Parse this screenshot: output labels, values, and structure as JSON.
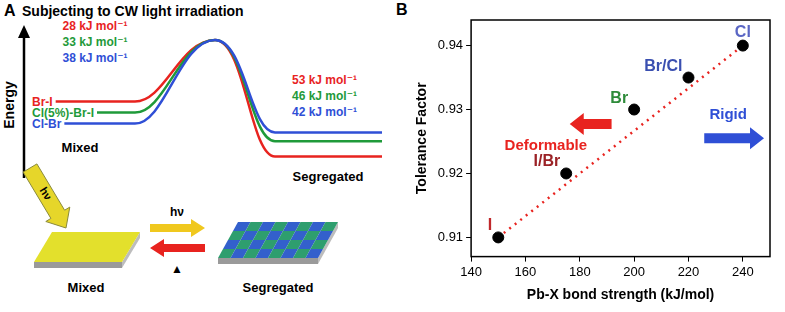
{
  "panel_a": {
    "letter": "A",
    "title": "Subjecting to CW light irradiation",
    "axis_label": "Energy",
    "state_labels": [
      "Mixed",
      "Segregated"
    ],
    "curves": [
      {
        "name": "Br-I",
        "color": "#e8231f",
        "mixed_barrier": {
          "value": 28,
          "label": "28 kJ mol⁻¹"
        },
        "segregated_barrier": {
          "value": 53,
          "label": "53 kJ mol⁻¹"
        }
      },
      {
        "name": "Cl(5%)-Br-I",
        "color": "#1f9a3a",
        "mixed_barrier": {
          "value": 33,
          "label": "33 kJ mol⁻¹"
        },
        "segregated_barrier": {
          "value": 46,
          "label": "46 kJ mol⁻¹"
        }
      },
      {
        "name": "Cl-Br",
        "color": "#2f4fd6",
        "mixed_barrier": {
          "value": 38,
          "label": "38 kJ mol⁻¹"
        },
        "segregated_barrier": {
          "value": 42,
          "label": "42 kJ mol⁻¹"
        }
      }
    ],
    "illustration": {
      "light": "hν",
      "forward": "hν",
      "reverse": "▲",
      "left": "Mixed",
      "right": "Segregated"
    }
  },
  "chart_data": {
    "type": "scatter",
    "panel_label": "B",
    "x_label": "Pb-X bond strength (kJ/mol)",
    "y_label": "Tolerance Factor",
    "xlim": [
      140,
      250
    ],
    "xticks": [
      140,
      160,
      180,
      200,
      220,
      240
    ],
    "ylim": [
      0.907,
      0.944
    ],
    "yticks": [
      0.91,
      0.92,
      0.93,
      0.94
    ],
    "grid": false,
    "series": [
      {
        "x": [
          150,
          175,
          200,
          220,
          240
        ],
        "values": [
          0.91,
          0.92,
          0.93,
          0.935,
          0.94
        ],
        "color": "#000000",
        "marker": "circle",
        "point_labels": [
          "I",
          "I/Br",
          "Br",
          "Br/Cl",
          "Cl"
        ],
        "label_colors": [
          "#c0282b",
          "#9b2226",
          "#2e8b3a",
          "#3a4fb0",
          "#5a66c4"
        ]
      },
      {
        "type": "line",
        "x": [
          150,
          240
        ],
        "values": [
          0.91,
          0.94
        ],
        "color": "#e8231f",
        "line_style": "dotted",
        "marker": "none"
      }
    ],
    "annotations": [
      {
        "text": "Rigid",
        "color": "#2f4fd6"
      },
      {
        "text": "Deformable",
        "color": "#e8231f"
      }
    ]
  }
}
